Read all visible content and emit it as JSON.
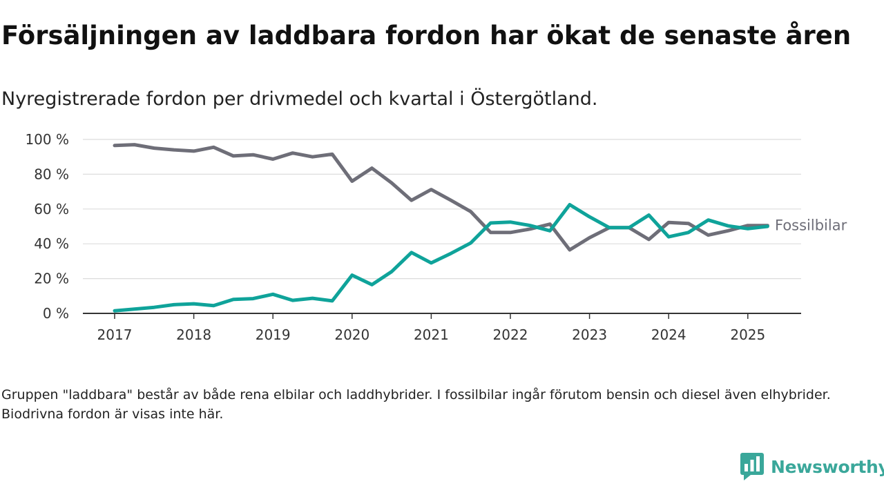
{
  "title": "Försäljningen av laddbara fordon har ökat de senaste åren",
  "subtitle": "Nyregistrerade fordon per drivmedel och kvartal i Östergötland.",
  "footnote": "Gruppen \"laddbara\" består av både rena elbilar och laddhybrider. I fossilbilar ingår förutom bensin och diesel även elhybrider. Biodrivna fordon är visas inte här.",
  "brand": {
    "name": "Newsworthy",
    "icon": "newsworthy-logo-icon",
    "color": "#3aa79a"
  },
  "chart_data": {
    "type": "line",
    "x": [
      "2017 Q1",
      "2017 Q2",
      "2017 Q3",
      "2017 Q4",
      "2018 Q1",
      "2018 Q2",
      "2018 Q3",
      "2018 Q4",
      "2019 Q1",
      "2019 Q2",
      "2019 Q3",
      "2019 Q4",
      "2020 Q1",
      "2020 Q2",
      "2020 Q3",
      "2020 Q4",
      "2021 Q1",
      "2021 Q2",
      "2021 Q3",
      "2021 Q4",
      "2022 Q1",
      "2022 Q2",
      "2022 Q3",
      "2022 Q4",
      "2023 Q1",
      "2023 Q2",
      "2023 Q3",
      "2023 Q4",
      "2024 Q1",
      "2024 Q2",
      "2024 Q3",
      "2024 Q4",
      "2025 Q1",
      "2025 Q2"
    ],
    "xtick_labels": [
      "2017",
      "2018",
      "2019",
      "2020",
      "2021",
      "2022",
      "2023",
      "2024",
      "2025"
    ],
    "ytick_labels": [
      "0 %",
      "20 %",
      "40 %",
      "60 %",
      "80 %",
      "100 %"
    ],
    "ylim": [
      0,
      100
    ],
    "grid": true,
    "series": [
      {
        "name": "Fossilbilar",
        "color": "#6e6e78",
        "values": [
          96.5,
          97,
          95,
          94,
          93.3,
          95.5,
          90.5,
          91.2,
          88.7,
          92.2,
          90,
          91.5,
          76,
          83.5,
          75,
          65,
          71.2,
          65,
          58.5,
          46.5,
          46.5,
          48.5,
          51.3,
          36.5,
          43.5,
          49.3,
          49.3,
          42.5,
          52.3,
          51.7,
          45,
          47.5,
          50.5,
          50.5
        ]
      },
      {
        "name": "",
        "color": "#0fa39a",
        "values": [
          1.5,
          2.5,
          3.5,
          5,
          5.5,
          4.5,
          8,
          8.5,
          11,
          7.5,
          8.7,
          7.2,
          22,
          16.5,
          24,
          35,
          29,
          34.5,
          40.5,
          52,
          52.5,
          50.5,
          47.5,
          62.5,
          55.5,
          49.3,
          49.3,
          56.5,
          44,
          46.5,
          53.7,
          50.3,
          48.7,
          50
        ]
      }
    ]
  }
}
